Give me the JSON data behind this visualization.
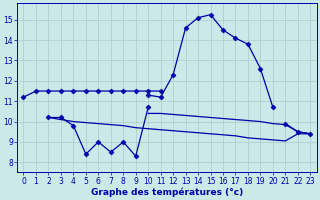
{
  "xlabel": "Graphe des températures (°c)",
  "background_color": "#cce8e8",
  "line_color": "#0000aa",
  "grid_color": "#aacccc",
  "ylim": [
    7.5,
    15.8
  ],
  "yticks": [
    8,
    9,
    10,
    11,
    12,
    13,
    14,
    15
  ],
  "xlim": [
    -0.5,
    23.5
  ],
  "xticks": [
    0,
    1,
    2,
    3,
    4,
    5,
    6,
    7,
    8,
    9,
    10,
    11,
    12,
    13,
    14,
    15,
    16,
    17,
    18,
    19,
    20,
    21,
    22,
    23
  ],
  "series": [
    {
      "x": [
        0,
        1,
        2,
        3,
        4,
        5,
        6,
        7,
        8,
        9,
        10,
        11
      ],
      "y": [
        11.2,
        11.5,
        11.5,
        11.5,
        11.5,
        11.5,
        11.5,
        11.5,
        11.5,
        11.5,
        11.5,
        11.5
      ],
      "marker": true
    },
    {
      "x": [
        10,
        11,
        12,
        13,
        14,
        15,
        16,
        17,
        18,
        19,
        20
      ],
      "y": [
        11.3,
        11.2,
        12.3,
        14.6,
        15.1,
        15.25,
        14.5,
        14.1,
        13.8,
        12.6,
        10.7
      ],
      "marker": true
    },
    {
      "x": [
        2,
        3,
        4,
        5,
        6,
        7,
        8,
        9,
        10
      ],
      "y": [
        10.2,
        10.2,
        9.8,
        8.4,
        9.0,
        8.5,
        9.0,
        8.3,
        10.7
      ],
      "marker": true
    },
    {
      "x": [
        2,
        3,
        4,
        5,
        6,
        7,
        8,
        9,
        10,
        11,
        12,
        13,
        14,
        15,
        16,
        17,
        18,
        19,
        20,
        21,
        22,
        23
      ],
      "y": [
        10.2,
        10.1,
        10.0,
        9.95,
        9.9,
        9.85,
        9.8,
        9.7,
        9.65,
        9.6,
        9.55,
        9.5,
        9.45,
        9.4,
        9.35,
        9.3,
        9.2,
        9.15,
        9.1,
        9.05,
        9.4,
        9.4
      ],
      "marker": false
    },
    {
      "x": [
        10,
        11,
        12,
        13,
        14,
        15,
        16,
        17,
        18,
        19,
        20,
        21,
        22,
        23
      ],
      "y": [
        10.4,
        10.4,
        10.35,
        10.3,
        10.25,
        10.2,
        10.15,
        10.1,
        10.05,
        10.0,
        9.9,
        9.85,
        9.5,
        9.4
      ],
      "marker": false
    },
    {
      "x": [
        21,
        22,
        23
      ],
      "y": [
        9.9,
        9.5,
        9.4
      ],
      "marker": true
    }
  ]
}
